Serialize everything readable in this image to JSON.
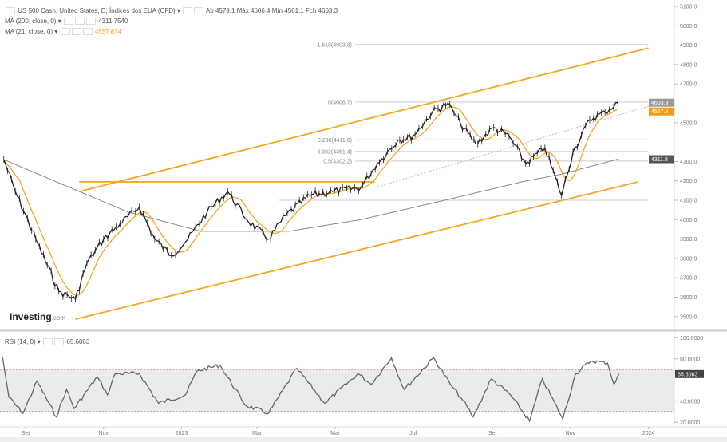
{
  "header": {
    "title": "US 500 Cash, United States, D, Índices dos EUA (CFD)",
    "ohlc": [
      {
        "k": "Ab",
        "v": "4579.1"
      },
      {
        "k": "Máx",
        "v": "4606.4"
      },
      {
        "k": "Mín",
        "v": "4561.1"
      },
      {
        "k": "Fch",
        "v": "4603.3"
      }
    ],
    "ma200": {
      "label": "MA (200, close, 0)",
      "value": "4311.7540"
    },
    "ma21": {
      "label": "MA (21, close, 0)",
      "value": "4557.874"
    },
    "rsi": {
      "label": "RSI (14, 0)",
      "value": "65.6063"
    }
  },
  "watermark": {
    "brand": "Investing",
    "suffix": ".com"
  },
  "colors": {
    "price": "#222222",
    "ma21": "#f5a623",
    "ma200": "#888888",
    "channel": "#f5a623",
    "rsi": "#666666",
    "overbought": "#e06060",
    "oversold": "#6060e0",
    "current_tag": "#f39c12"
  },
  "chart_data": [
    {
      "type": "line",
      "title": "US 500 Cash, United States, D, Índices dos EUA (CFD)",
      "ylim": [
        3450,
        5120
      ],
      "yticks": [
        5100,
        5000,
        4900,
        4800,
        4700,
        4500,
        4300,
        4200,
        4100,
        4000,
        3900,
        3800,
        3700,
        3600,
        3500
      ],
      "ytick_labels": [
        "5100.0",
        "5000.0",
        "4900.0",
        "4800.0",
        "4700.0",
        "4500.0",
        "4300.0",
        "4200.0",
        "4100.0",
        "4000.0",
        "3900.0",
        "3800.0",
        "3700.0",
        "3600.0",
        "3500.0"
      ],
      "price_tags": [
        {
          "label": "4603.3",
          "value": 4603.3,
          "color": "#9a9a9a"
        },
        {
          "label": "4557.9",
          "value": 4557.9,
          "color": "#f39c12"
        },
        {
          "label": "4311.8",
          "value": 4311.8,
          "color": "#555555"
        }
      ],
      "xticks": [
        {
          "date": "2022-09-01",
          "label": "Set"
        },
        {
          "date": "2022-11-01",
          "label": "Nov"
        },
        {
          "date": "2023-01-01",
          "label": "2023"
        },
        {
          "date": "2023-03-01",
          "label": "Mar"
        },
        {
          "date": "2023-05-01",
          "label": "Mai"
        },
        {
          "date": "2023-07-01",
          "label": "Jul"
        },
        {
          "date": "2023-09-01",
          "label": "Set"
        },
        {
          "date": "2023-11-01",
          "label": "Nov"
        },
        {
          "date": "2024-01-01",
          "label": "2024"
        }
      ],
      "series": [
        {
          "id": "price",
          "points": [
            [
              "2022-08-15",
              4310
            ],
            [
              "2022-08-24",
              4145
            ],
            [
              "2022-09-09",
              3900
            ],
            [
              "2022-09-27",
              3630
            ],
            [
              "2022-10-10",
              3590
            ],
            [
              "2022-10-19",
              3775
            ],
            [
              "2022-11-01",
              3900
            ],
            [
              "2022-11-14",
              3980
            ],
            [
              "2022-11-29",
              4065
            ],
            [
              "2022-12-11",
              3900
            ],
            [
              "2022-12-24",
              3815
            ],
            [
              "2023-01-06",
              3900
            ],
            [
              "2023-01-21",
              4040
            ],
            [
              "2023-02-06",
              4145
            ],
            [
              "2023-02-21",
              4000
            ],
            [
              "2023-03-10",
              3900
            ],
            [
              "2023-03-23",
              4020
            ],
            [
              "2023-04-11",
              4125
            ],
            [
              "2023-04-29",
              4145
            ],
            [
              "2023-05-21",
              4165
            ],
            [
              "2023-06-03",
              4290
            ],
            [
              "2023-06-19",
              4410
            ],
            [
              "2023-07-01",
              4430
            ],
            [
              "2023-07-16",
              4555
            ],
            [
              "2023-07-28",
              4600
            ],
            [
              "2023-08-07",
              4495
            ],
            [
              "2023-08-19",
              4390
            ],
            [
              "2023-09-02",
              4475
            ],
            [
              "2023-09-14",
              4430
            ],
            [
              "2023-09-27",
              4290
            ],
            [
              "2023-10-12",
              4370
            ],
            [
              "2023-10-25",
              4125
            ],
            [
              "2023-11-03",
              4350
            ],
            [
              "2023-11-16",
              4515
            ],
            [
              "2023-11-28",
              4555
            ],
            [
              "2023-12-08",
              4603.3
            ]
          ]
        },
        {
          "id": "ma200",
          "points": [
            [
              "2022-08-15",
              4310
            ],
            [
              "2022-10-13",
              4145
            ],
            [
              "2022-11-20",
              4040
            ],
            [
              "2023-01-16",
              3940
            ],
            [
              "2023-03-26",
              3940
            ],
            [
              "2023-05-21",
              4000
            ],
            [
              "2023-07-29",
              4105
            ],
            [
              "2023-09-24",
              4195
            ],
            [
              "2023-10-25",
              4235
            ],
            [
              "2023-12-08",
              4311.8
            ]
          ]
        }
      ],
      "trendlines": [
        {
          "id": "channel-upper",
          "from": [
            "2022-10-13",
            4145
          ],
          "to": [
            "2024-01-01",
            4885
          ]
        },
        {
          "id": "channel-lower",
          "from": [
            "2022-10-10",
            3487
          ],
          "to": [
            "2023-12-24",
            4195
          ]
        },
        {
          "id": "resistance",
          "from": [
            "2022-10-13",
            4195
          ],
          "to": [
            "2023-06-01",
            4195
          ]
        },
        {
          "id": "dotted-trend",
          "from": [
            "2023-06-01",
            4165
          ],
          "to": [
            "2024-01-12",
            4607
          ]
        }
      ],
      "fib_levels": [
        {
          "label": "1.618(4903.3)",
          "value": 4903.3
        },
        {
          "label": "0(4606.7)",
          "value": 4606.7
        },
        {
          "label": "0.236(4411.6)",
          "value": 4411.6
        },
        {
          "label": "0.382(4351.4)",
          "value": 4351.4
        },
        {
          "label": "0.5(4302.2)",
          "value": 4302.2
        },
        {
          "label": "",
          "value": 4100
        }
      ]
    },
    {
      "type": "line",
      "title": "RSI (14, 0)",
      "ylim": [
        18,
        103
      ],
      "yticks": [
        100,
        80,
        40,
        20
      ],
      "ytick_labels": [
        "100.0000",
        "80.0000",
        "40.0000",
        "20.0000"
      ],
      "current": {
        "label": "65.6063",
        "value": 65.6063
      },
      "levels": {
        "overbought": 70,
        "oversold": 30
      },
      "points": [
        [
          "2022-08-14",
          82
        ],
        [
          "2022-08-19",
          43.6
        ],
        [
          "2022-08-30",
          28.5
        ],
        [
          "2022-09-10",
          59
        ],
        [
          "2022-09-25",
          25
        ],
        [
          "2022-10-03",
          51
        ],
        [
          "2022-10-09",
          33
        ],
        [
          "2022-10-27",
          63
        ],
        [
          "2022-11-04",
          46
        ],
        [
          "2022-11-10",
          66
        ],
        [
          "2022-11-29",
          66
        ],
        [
          "2022-12-14",
          38
        ],
        [
          "2023-01-04",
          46
        ],
        [
          "2023-01-13",
          68.5
        ],
        [
          "2023-01-31",
          74
        ],
        [
          "2023-02-20",
          36
        ],
        [
          "2023-03-10",
          28.5
        ],
        [
          "2023-04-01",
          71
        ],
        [
          "2023-04-23",
          38
        ],
        [
          "2023-05-19",
          66
        ],
        [
          "2023-05-29",
          56
        ],
        [
          "2023-06-14",
          81
        ],
        [
          "2023-06-24",
          51
        ],
        [
          "2023-07-17",
          81
        ],
        [
          "2023-07-30",
          56
        ],
        [
          "2023-08-09",
          40.5
        ],
        [
          "2023-08-17",
          25
        ],
        [
          "2023-08-31",
          61
        ],
        [
          "2023-09-15",
          46
        ],
        [
          "2023-09-30",
          21
        ],
        [
          "2023-10-10",
          61
        ],
        [
          "2023-10-26",
          23
        ],
        [
          "2023-11-05",
          66
        ],
        [
          "2023-11-17",
          78
        ],
        [
          "2023-11-30",
          76
        ],
        [
          "2023-12-05",
          56
        ],
        [
          "2023-12-09",
          65.6
        ]
      ]
    }
  ]
}
